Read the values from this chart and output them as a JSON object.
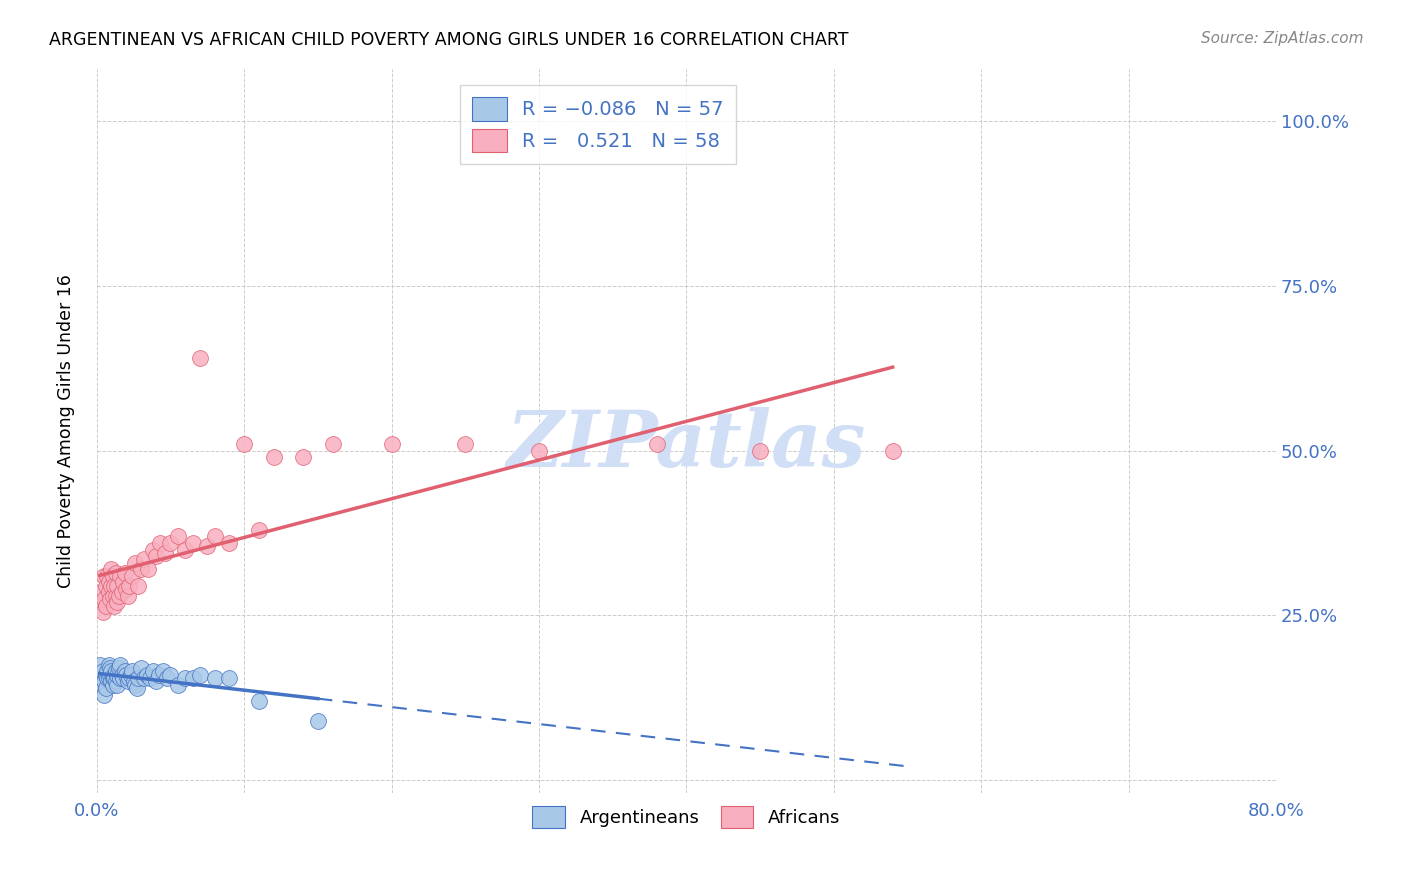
{
  "title": "ARGENTINEAN VS AFRICAN CHILD POVERTY AMONG GIRLS UNDER 16 CORRELATION CHART",
  "source": "Source: ZipAtlas.com",
  "ylabel": "Child Poverty Among Girls Under 16",
  "xlabel": "",
  "xlim": [
    0.0,
    0.8
  ],
  "ylim": [
    -0.02,
    1.08
  ],
  "yticks": [
    0.0,
    0.25,
    0.5,
    0.75,
    1.0
  ],
  "ytick_labels": [
    "",
    "25.0%",
    "50.0%",
    "75.0%",
    "100.0%"
  ],
  "xticks": [
    0.0,
    0.1,
    0.2,
    0.3,
    0.4,
    0.5,
    0.6,
    0.7,
    0.8
  ],
  "xtick_labels": [
    "0.0%",
    "",
    "",
    "",
    "",
    "",
    "",
    "",
    "80.0%"
  ],
  "legend_r_argentinean": "-0.086",
  "legend_n_argentinean": "57",
  "legend_r_african": "0.521",
  "legend_n_african": "58",
  "argentinean_color": "#a8c8e8",
  "african_color": "#f8b0c0",
  "argentinean_line_color": "#4472c4",
  "african_line_color": "#e8607080",
  "african_line_solid": "#e06070",
  "watermark_color": "#d0dff5",
  "argentinean_x": [
    0.002,
    0.003,
    0.004,
    0.004,
    0.005,
    0.005,
    0.006,
    0.006,
    0.007,
    0.007,
    0.008,
    0.008,
    0.009,
    0.009,
    0.01,
    0.01,
    0.011,
    0.011,
    0.012,
    0.012,
    0.013,
    0.013,
    0.014,
    0.014,
    0.015,
    0.016,
    0.016,
    0.017,
    0.018,
    0.019,
    0.02,
    0.021,
    0.022,
    0.023,
    0.024,
    0.025,
    0.026,
    0.027,
    0.028,
    0.03,
    0.032,
    0.034,
    0.036,
    0.038,
    0.04,
    0.042,
    0.045,
    0.048,
    0.05,
    0.055,
    0.06,
    0.065,
    0.07,
    0.08,
    0.09,
    0.11,
    0.15
  ],
  "argentinean_y": [
    0.175,
    0.155,
    0.145,
    0.165,
    0.15,
    0.13,
    0.16,
    0.14,
    0.155,
    0.165,
    0.175,
    0.155,
    0.16,
    0.17,
    0.15,
    0.165,
    0.155,
    0.145,
    0.16,
    0.155,
    0.15,
    0.165,
    0.145,
    0.16,
    0.17,
    0.175,
    0.155,
    0.16,
    0.155,
    0.165,
    0.16,
    0.15,
    0.155,
    0.16,
    0.165,
    0.15,
    0.145,
    0.14,
    0.155,
    0.17,
    0.155,
    0.16,
    0.155,
    0.165,
    0.15,
    0.16,
    0.165,
    0.155,
    0.16,
    0.145,
    0.155,
    0.155,
    0.16,
    0.155,
    0.155,
    0.12,
    0.09
  ],
  "african_x": [
    0.002,
    0.003,
    0.004,
    0.005,
    0.005,
    0.006,
    0.006,
    0.007,
    0.008,
    0.008,
    0.009,
    0.01,
    0.01,
    0.011,
    0.011,
    0.012,
    0.012,
    0.013,
    0.013,
    0.014,
    0.014,
    0.015,
    0.016,
    0.017,
    0.018,
    0.019,
    0.02,
    0.021,
    0.022,
    0.024,
    0.026,
    0.028,
    0.03,
    0.032,
    0.035,
    0.038,
    0.04,
    0.043,
    0.046,
    0.05,
    0.055,
    0.06,
    0.065,
    0.07,
    0.075,
    0.08,
    0.09,
    0.1,
    0.11,
    0.12,
    0.14,
    0.16,
    0.2,
    0.25,
    0.3,
    0.38,
    0.45,
    0.54
  ],
  "african_y": [
    0.27,
    0.285,
    0.255,
    0.31,
    0.275,
    0.295,
    0.265,
    0.31,
    0.285,
    0.3,
    0.275,
    0.32,
    0.295,
    0.28,
    0.31,
    0.265,
    0.295,
    0.28,
    0.315,
    0.27,
    0.295,
    0.28,
    0.31,
    0.285,
    0.3,
    0.315,
    0.29,
    0.28,
    0.295,
    0.31,
    0.33,
    0.295,
    0.32,
    0.335,
    0.32,
    0.35,
    0.34,
    0.36,
    0.345,
    0.36,
    0.37,
    0.35,
    0.36,
    0.64,
    0.355,
    0.37,
    0.36,
    0.51,
    0.38,
    0.49,
    0.49,
    0.51,
    0.51,
    0.51,
    0.5,
    0.51,
    0.5,
    0.5
  ]
}
